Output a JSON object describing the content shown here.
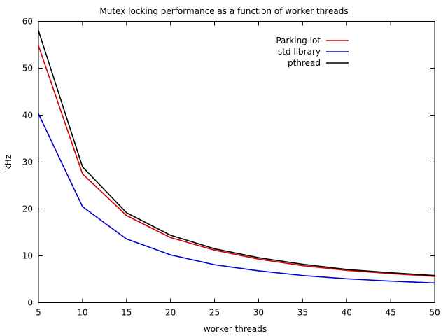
{
  "chart_data": {
    "type": "line",
    "title": "Mutex locking performance as a function of worker threads",
    "xlabel": "worker threads",
    "ylabel": "kHz",
    "xlim": [
      5,
      50
    ],
    "ylim": [
      0,
      60
    ],
    "xticks": [
      5,
      10,
      15,
      20,
      25,
      30,
      35,
      40,
      45,
      50
    ],
    "yticks": [
      0,
      10,
      20,
      30,
      40,
      50,
      60
    ],
    "grid": false,
    "legend_position": "top-right",
    "x": [
      5,
      10,
      15,
      20,
      25,
      30,
      35,
      40,
      45,
      50
    ],
    "series": [
      {
        "name": "Parking lot",
        "color": "#d40000",
        "values": [
          54.8,
          27.5,
          18.6,
          13.9,
          11.2,
          9.3,
          7.9,
          6.9,
          6.2,
          5.6
        ]
      },
      {
        "name": "std library",
        "color": "#0000d4",
        "values": [
          40.3,
          20.5,
          13.6,
          10.2,
          8.1,
          6.8,
          5.8,
          5.1,
          4.6,
          4.2
        ]
      },
      {
        "name": "pthread",
        "color": "#000000",
        "values": [
          58.0,
          29.0,
          19.2,
          14.4,
          11.5,
          9.6,
          8.2,
          7.1,
          6.4,
          5.8
        ]
      }
    ]
  }
}
